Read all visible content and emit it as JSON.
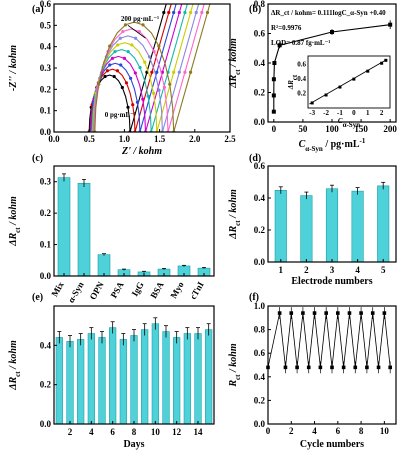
{
  "panels": {
    "a": "(a)",
    "b": "(b)",
    "c": "(c)",
    "d": "(d)",
    "e": "(e)",
    "f": "(f)"
  },
  "chart_data": [
    {
      "id": "a",
      "type": "line",
      "title": "",
      "xlabel": "Z' / kohm",
      "ylabel": "-Z'' / kohm",
      "xlim": [
        0,
        2.5
      ],
      "ylim": [
        0,
        0.6
      ],
      "xticks": [
        "0.0",
        "0.5",
        "1.0",
        "1.5",
        "2.0",
        "2.5"
      ],
      "yticks": [
        "0.0",
        "0.1",
        "0.2",
        "0.3",
        "0.4",
        "0.5",
        "0.6"
      ],
      "annotations": [
        "200 pg·mL⁻¹",
        "0 pg·mL⁻¹"
      ],
      "colors": {
        "series": [
          "#000000",
          "#d40000",
          "#2848d8",
          "#d000d0",
          "#16b8a8",
          "#cccc00",
          "#8888dd",
          "#ff66cc",
          "#8a7a20"
        ]
      },
      "series": [
        {
          "x0": 0.5,
          "x1": 1.08
        },
        {
          "x0": 0.51,
          "x1": 1.15
        },
        {
          "x0": 0.52,
          "x1": 1.22
        },
        {
          "x0": 0.53,
          "x1": 1.3
        },
        {
          "x0": 0.54,
          "x1": 1.38
        },
        {
          "x0": 0.55,
          "x1": 1.46
        },
        {
          "x0": 0.56,
          "x1": 1.54
        },
        {
          "x0": 0.57,
          "x1": 1.62
        },
        {
          "x0": 0.58,
          "x1": 1.7
        }
      ]
    },
    {
      "id": "b",
      "type": "scatter",
      "xlabel": "C_α-Syn / pg·mL⁻¹",
      "ylabel": "ΔR_ct / kohm",
      "xlim": [
        -10,
        210
      ],
      "ylim": [
        0,
        0.8
      ],
      "xticks": [
        "0",
        "50",
        "100",
        "150",
        "200"
      ],
      "yticks": [
        "0.0",
        "0.2",
        "0.4",
        "0.6",
        "0.8"
      ],
      "annotations": [
        "ΔR_ct / kohm= 0.111logC_α-Syn +0.40",
        "R²=0.9976",
        "LOD= 0.87 fg·mL⁻¹"
      ],
      "x": [
        0.001,
        0.01,
        0.1,
        1,
        10,
        100,
        200
      ],
      "y": [
        0.07,
        0.18,
        0.29,
        0.4,
        0.52,
        0.61,
        0.66
      ],
      "err": [
        0.01,
        0.01,
        0.015,
        0.015,
        0.02,
        0.02,
        0.03
      ],
      "inset": {
        "xlabel": "C_α-Syn",
        "ylabel": "ΔR_ct",
        "xticks": [
          "-3",
          "-2",
          "-1",
          "0",
          "1",
          "2"
        ],
        "yticks": [
          "0.2",
          "0.4",
          "0.6"
        ],
        "x": [
          -3,
          -2,
          -1,
          0,
          1,
          2,
          2.3
        ],
        "y": [
          0.07,
          0.18,
          0.29,
          0.4,
          0.51,
          0.62,
          0.66
        ]
      }
    },
    {
      "id": "c",
      "type": "bar",
      "xlabel": "",
      "ylabel": "ΔR_ct / kohm",
      "ylim": [
        0,
        0.35
      ],
      "yticks": [
        "0.0",
        "0.1",
        "0.2",
        "0.3"
      ],
      "categories": [
        "Mix",
        "α-Syn",
        "OPN",
        "PSA",
        "IgG",
        "BSA",
        "Myo",
        "cTnI"
      ],
      "values": [
        0.313,
        0.295,
        0.068,
        0.02,
        0.013,
        0.022,
        0.032,
        0.025
      ],
      "errors": [
        0.012,
        0.012,
        0.003,
        0.002,
        0.002,
        0.002,
        0.002,
        0.002
      ]
    },
    {
      "id": "d",
      "type": "bar",
      "xlabel": "Electrode numbers",
      "ylabel": "ΔR_ct / kohm",
      "ylim": [
        0,
        0.6
      ],
      "yticks": [
        "0.0",
        "0.2",
        "0.4",
        "0.6"
      ],
      "categories": [
        "1",
        "2",
        "3",
        "4",
        "5"
      ],
      "values": [
        0.448,
        0.415,
        0.458,
        0.443,
        0.476
      ],
      "errors": [
        0.022,
        0.022,
        0.022,
        0.022,
        0.022
      ]
    },
    {
      "id": "e",
      "type": "bar",
      "xlabel": "Days",
      "ylabel": "ΔR_ct / kohm",
      "ylim": [
        0,
        0.6
      ],
      "yticks": [
        "0.0",
        "0.2",
        "0.4"
      ],
      "xticks": [
        "2",
        "4",
        "6",
        "8",
        "10",
        "12",
        "14"
      ],
      "categories": [
        "1",
        "2",
        "3",
        "4",
        "5",
        "6",
        "7",
        "8",
        "9",
        "10",
        "11",
        "12",
        "13",
        "14",
        "15"
      ],
      "values": [
        0.44,
        0.42,
        0.43,
        0.46,
        0.44,
        0.49,
        0.43,
        0.45,
        0.48,
        0.51,
        0.47,
        0.44,
        0.46,
        0.46,
        0.48
      ],
      "errors": [
        0.03,
        0.03,
        0.03,
        0.03,
        0.03,
        0.03,
        0.03,
        0.03,
        0.03,
        0.03,
        0.03,
        0.03,
        0.03,
        0.03,
        0.03
      ]
    },
    {
      "id": "f",
      "type": "line",
      "xlabel": "Cycle numbers",
      "ylabel": "R_ct / kohm",
      "xlim": [
        0,
        11
      ],
      "ylim": [
        0,
        1.0
      ],
      "xticks": [
        "0",
        "2",
        "4",
        "6",
        "8",
        "10"
      ],
      "yticks": [
        "0.0",
        "0.2",
        "0.4",
        "0.6",
        "0.8",
        "1.0"
      ],
      "x": [
        0,
        1,
        1.5,
        2,
        2.5,
        3,
        3.5,
        4,
        4.5,
        5,
        5.5,
        6,
        6.5,
        7,
        7.5,
        8,
        8.5,
        9,
        9.5,
        10,
        10.5
      ],
      "y": [
        0.48,
        0.94,
        0.48,
        0.94,
        0.48,
        0.94,
        0.48,
        0.94,
        0.48,
        0.94,
        0.48,
        0.94,
        0.48,
        0.94,
        0.48,
        0.94,
        0.48,
        0.94,
        0.48,
        0.94,
        0.48
      ]
    }
  ],
  "accent": "#4fd1d9"
}
